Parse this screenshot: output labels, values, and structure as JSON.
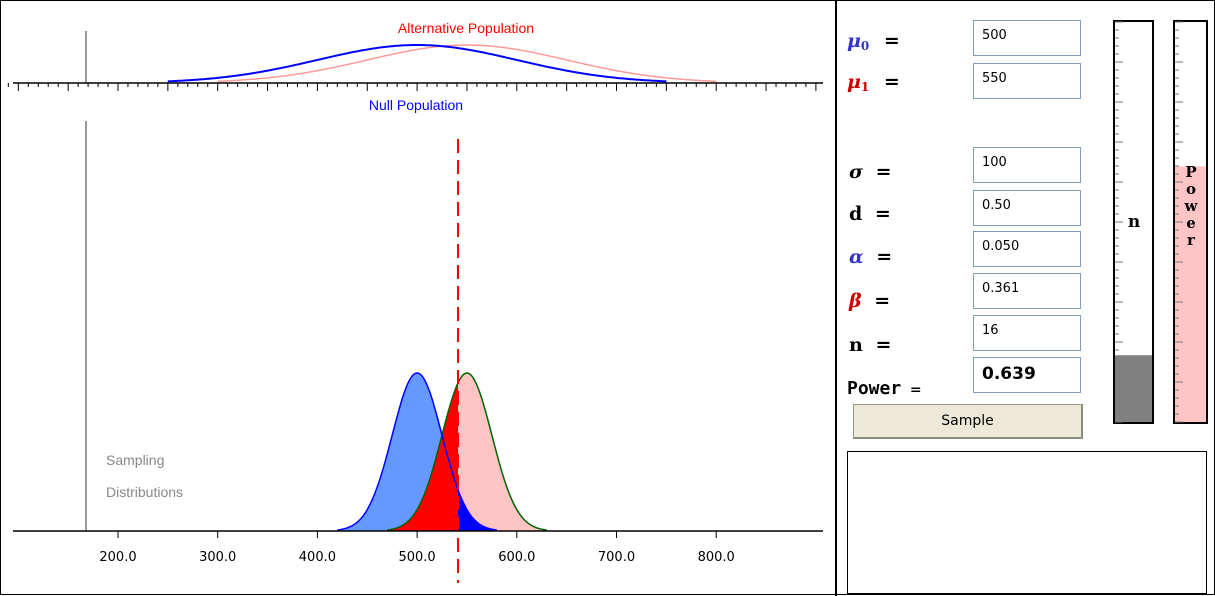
{
  "plot": {
    "alt_population_label": "Alternative Population",
    "null_population_label": "Null Population",
    "sampling_label_line1": "Sampling",
    "sampling_label_line2": "Distributions",
    "x_tick_labels": [
      "200.0",
      "300.0",
      "400.0",
      "500.0",
      "600.0",
      "700.0",
      "800.0"
    ],
    "colors": {
      "null": "#0000ff",
      "null_fill": "#6699ff",
      "alt": "#ff9999",
      "alt_fill": "#ffc4c4",
      "alt_sampling_outline": "#006400",
      "beta_region": "#ff0000",
      "critical_line": "#ff0000"
    }
  },
  "chart_data": {
    "type": "area",
    "x_range": [
      90,
      900
    ],
    "xticks": [
      200,
      300,
      400,
      500,
      600,
      700,
      800
    ],
    "populations": {
      "null_mean": 500,
      "alt_mean": 550,
      "sd": 100
    },
    "sampling_distributions": {
      "null_mean": 500,
      "alt_mean": 550,
      "standard_error": 25,
      "critical_value": 541
    }
  },
  "params": {
    "mu0_label": "μ",
    "mu0_sub": "0",
    "mu1_label": "μ",
    "mu1_sub": "1",
    "sigma_label": "σ",
    "d_label": "d",
    "alpha_label": "α",
    "beta_label": "β",
    "n_label": "n",
    "power_label": "Power",
    "equals": "=",
    "mu0_value": "500",
    "mu1_value": "550",
    "sigma_value": "100",
    "d_value": "0.50",
    "alpha_value": "0.050",
    "beta_value": "0.361",
    "n_value": "16",
    "power_value": "0.639",
    "colors": {
      "mu0": "#3333cc",
      "mu1": "#cc0000",
      "alpha": "#3333cc",
      "beta": "#cc0000"
    }
  },
  "sample_button_label": "Sample",
  "gauges": {
    "n_label": "n",
    "power_letters": [
      "P",
      "o",
      "w",
      "e",
      "r"
    ],
    "n_fill_fraction": 0.167,
    "power_fill_fraction": 0.639,
    "n_fill_color": "#808080",
    "power_fill_color": "#ffc4c4"
  }
}
